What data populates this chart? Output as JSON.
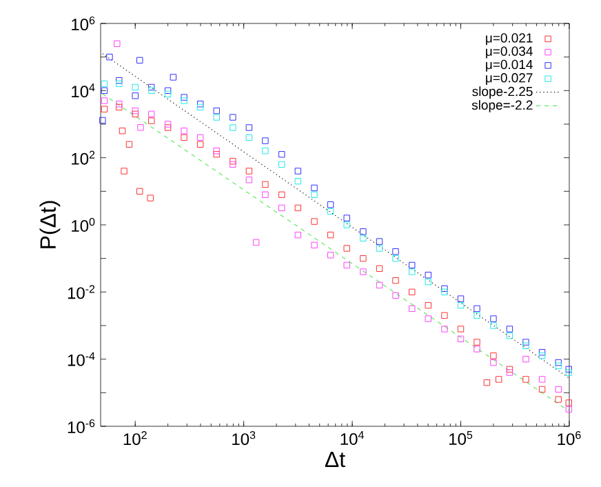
{
  "chart_data": {
    "type": "scatter",
    "xlabel": "Δt",
    "ylabel": "P(Δt)",
    "log": "xy",
    "legend": "top right",
    "marker": "square",
    "xlim": [
      48,
      1000000
    ],
    "ylim": [
      1e-06,
      1000000
    ],
    "xticks": [
      {
        "value": 100,
        "label": "10$^{2}$"
      },
      {
        "value": 1000,
        "label": "10$^{3}$"
      },
      {
        "value": 10000,
        "label": "10$^{4}$"
      },
      {
        "value": 100000,
        "label": "10$^{5}$"
      },
      {
        "value": 1000000,
        "label": "10$^{6}$"
      }
    ],
    "yticks": [
      {
        "value": 1e-06,
        "label": "10$^{-6}$"
      },
      {
        "value": 1e-05,
        "label": null
      },
      {
        "value": 0.0001,
        "label": "10$^{-4}$"
      },
      {
        "value": 0.001,
        "label": null
      },
      {
        "value": 0.01,
        "label": "10$^{-2}$"
      },
      {
        "value": 0.1,
        "label": null
      },
      {
        "value": 1,
        "label": "10$^{0}$"
      },
      {
        "value": 10,
        "label": null
      },
      {
        "value": 100,
        "label": "10$^{2}$"
      },
      {
        "value": 1000,
        "label": null
      },
      {
        "value": 10000,
        "label": "10$^{4}$"
      },
      {
        "value": 100000,
        "label": null
      },
      {
        "value": 1000000,
        "label": "10$^{6}$"
      }
    ],
    "series": [
      {
        "name": "μ=0.021",
        "color": "#ff3030",
        "x": [
          52,
          71,
          100,
          141,
          200,
          282,
          398,
          562,
          794,
          1120,
          1580,
          2240,
          3160,
          4470,
          6310,
          8910,
          12600,
          17800,
          25100,
          35500,
          50100,
          70800,
          100000,
          141000,
          200000,
          282000,
          398000,
          562000,
          794000,
          990000,
          79,
          110,
          138,
          76,
          88,
          174000,
          224000
        ],
        "values": [
          2800,
          3200,
          2000,
          1260,
          790,
          400,
          250,
          126,
          79,
          40,
          16,
          7.9,
          3.2,
          1.26,
          0.5,
          0.2,
          0.1,
          0.05,
          0.022,
          0.01,
          0.004,
          0.002,
          0.00079,
          0.00032,
          0.000126,
          5e-05,
          2.5e-05,
          1.26e-05,
          6.3e-06,
          5e-06,
          40,
          10,
          6.3,
          630,
          250,
          2e-05,
          2.5e-05
        ]
      },
      {
        "name": "μ=0.034",
        "color": "#ff40ff",
        "x": [
          52,
          71,
          100,
          141,
          200,
          282,
          398,
          562,
          794,
          1120,
          1580,
          2240,
          3160,
          4470,
          6310,
          8910,
          12600,
          17800,
          25100,
          35500,
          50100,
          70800,
          100000,
          141000,
          200000,
          282000,
          398000,
          562000,
          794000,
          990000,
          68,
          112,
          1300
        ],
        "values": [
          5000,
          4000,
          2500,
          2000,
          1000,
          630,
          400,
          160,
          63,
          22,
          7.9,
          3.2,
          0.5,
          0.25,
          0.126,
          0.063,
          0.04,
          0.016,
          0.0079,
          0.0032,
          0.0016,
          0.00079,
          0.0004,
          0.0002,
          7.9e-05,
          4e-05,
          0.0001,
          2.5e-05,
          1.26e-05,
          3.2e-06,
          250000,
          800,
          0.3
        ]
      },
      {
        "name": "μ=0.014",
        "color": "#3030ff",
        "x": [
          52,
          71,
          100,
          141,
          200,
          282,
          398,
          562,
          794,
          1120,
          1580,
          2240,
          3160,
          4470,
          6310,
          8910,
          12600,
          17800,
          25100,
          35500,
          50100,
          70800,
          100000,
          141000,
          200000,
          282000,
          398000,
          562000,
          794000,
          990000,
          58,
          110,
          224,
          50
        ],
        "values": [
          10000,
          20000,
          7000,
          12600,
          10000,
          6300,
          4000,
          2500,
          1600,
          790,
          320,
          126,
          40,
          12.6,
          4,
          1.6,
          0.63,
          0.32,
          0.16,
          0.063,
          0.032,
          0.0126,
          0.0063,
          0.0032,
          0.0016,
          0.00079,
          0.00032,
          0.00016,
          7.9e-05,
          5e-05,
          100000,
          80000,
          25000,
          1300
        ]
      },
      {
        "name": "μ=0.027",
        "color": "#20e8e8",
        "x": [
          52,
          71,
          100,
          141,
          200,
          282,
          398,
          562,
          794,
          1120,
          1580,
          2240,
          3160,
          4470,
          6310,
          8910,
          12600,
          17800,
          25100,
          35500,
          50100,
          70800,
          100000,
          141000,
          200000,
          282000,
          398000,
          562000,
          794000,
          990000
        ],
        "values": [
          16000,
          16000,
          12600,
          10000,
          7900,
          5000,
          3200,
          1600,
          790,
          400,
          160,
          63,
          20,
          7.9,
          2.5,
          1,
          0.4,
          0.2,
          0.1,
          0.04,
          0.02,
          0.01,
          0.004,
          0.002,
          0.001,
          0.0005,
          0.00025,
          0.000126,
          6.3e-05,
          4e-05
        ]
      },
      {
        "name": "slope-2.25",
        "type": "line",
        "marker": "none",
        "line_style": "dotted",
        "color": "#000000",
        "x": [
          50,
          1000000
        ],
        "values": [
          126000,
          2.7e-05
        ]
      },
      {
        "name": "slope=-2.2",
        "type": "line",
        "marker": "none",
        "line_style": "dashed",
        "color": "#60e860",
        "x": [
          50,
          1000000
        ],
        "values": [
          8000,
          2.8e-06
        ]
      }
    ]
  }
}
